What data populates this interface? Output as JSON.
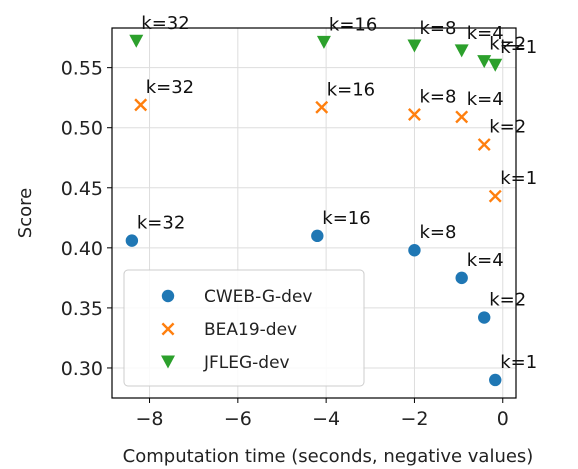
{
  "chart_data": {
    "type": "scatter",
    "xlabel": "Computation time (seconds, negative values)",
    "ylabel": "Score",
    "xlim": [
      -8.85,
      0.3
    ],
    "ylim": [
      0.275,
      0.583
    ],
    "x_ticks": [
      -8,
      -6,
      -4,
      -2,
      0
    ],
    "x_tick_labels": [
      "−8",
      "−6",
      "−4",
      "−2",
      "0"
    ],
    "y_ticks": [
      0.3,
      0.35,
      0.4,
      0.45,
      0.5,
      0.55
    ],
    "y_tick_labels": [
      "0.30",
      "0.35",
      "0.40",
      "0.45",
      "0.50",
      "0.55"
    ],
    "grid": true,
    "legend_position": "lower-left",
    "series": [
      {
        "name": "CWEB-G-dev",
        "marker": "circle",
        "color": "#1f77b4",
        "points": [
          {
            "x": -8.4,
            "y": 0.406,
            "label": "k=32"
          },
          {
            "x": -4.2,
            "y": 0.41,
            "label": "k=16"
          },
          {
            "x": -2.0,
            "y": 0.398,
            "label": "k=8"
          },
          {
            "x": -0.93,
            "y": 0.375,
            "label": "k=4"
          },
          {
            "x": -0.42,
            "y": 0.342,
            "label": "k=2"
          },
          {
            "x": -0.17,
            "y": 0.29,
            "label": "k=1"
          }
        ]
      },
      {
        "name": "BEA19-dev",
        "marker": "x",
        "color": "#ff7f0e",
        "points": [
          {
            "x": -8.2,
            "y": 0.519,
            "label": "k=32"
          },
          {
            "x": -4.1,
            "y": 0.517,
            "label": "k=16"
          },
          {
            "x": -2.0,
            "y": 0.511,
            "label": "k=8"
          },
          {
            "x": -0.93,
            "y": 0.509,
            "label": "k=4"
          },
          {
            "x": -0.42,
            "y": 0.486,
            "label": "k=2"
          },
          {
            "x": -0.17,
            "y": 0.443,
            "label": "k=1"
          }
        ]
      },
      {
        "name": "JFLEG-dev",
        "marker": "triangle-down",
        "color": "#2ca02c",
        "points": [
          {
            "x": -8.3,
            "y": 0.572,
            "label": "k=32"
          },
          {
            "x": -4.05,
            "y": 0.571,
            "label": "k=16"
          },
          {
            "x": -2.0,
            "y": 0.568,
            "label": "k=8"
          },
          {
            "x": -0.93,
            "y": 0.564,
            "label": "k=4"
          },
          {
            "x": -0.42,
            "y": 0.555,
            "label": "k=2"
          },
          {
            "x": -0.17,
            "y": 0.552,
            "label": "k=1"
          }
        ]
      }
    ]
  }
}
